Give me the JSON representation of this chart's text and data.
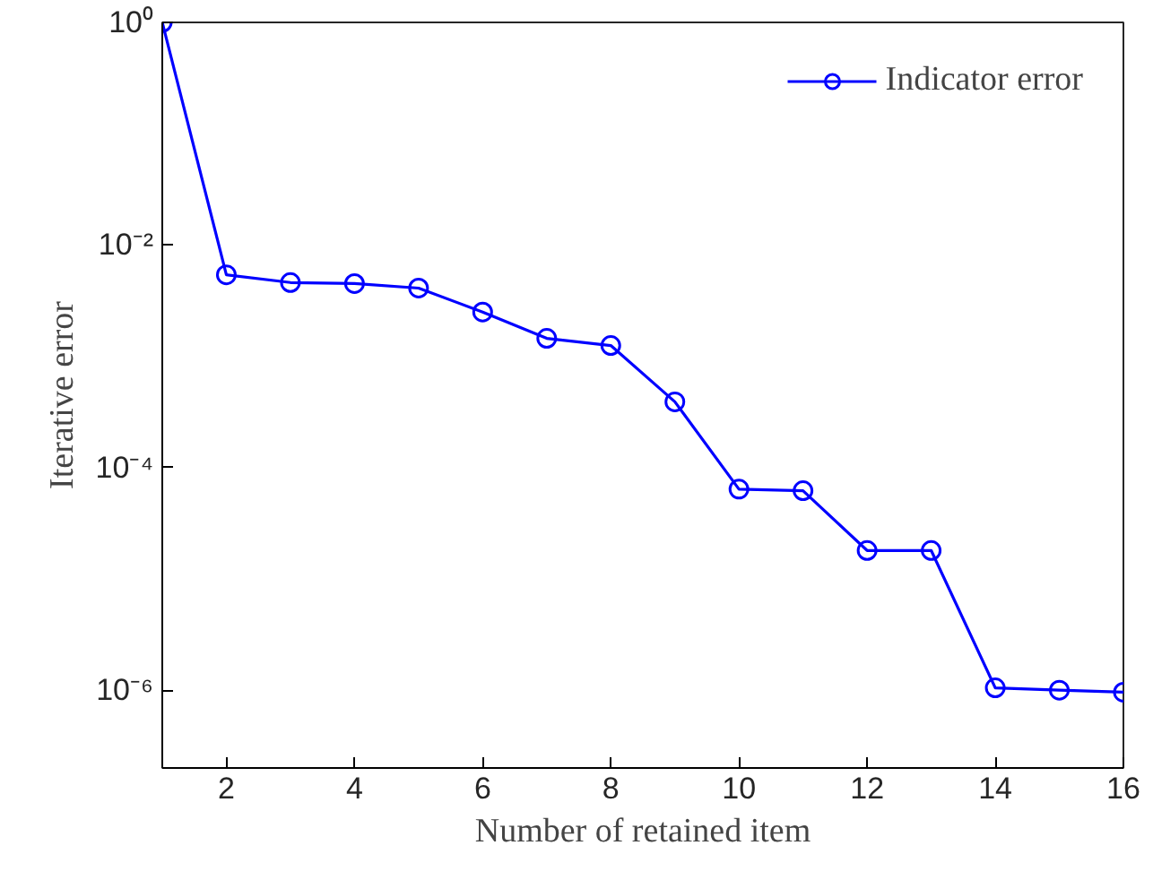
{
  "chart_data": {
    "type": "line",
    "xlabel": "Number of retained item",
    "ylabel": "Iterative error",
    "x": [
      1,
      2,
      3,
      4,
      5,
      6,
      7,
      8,
      9,
      10,
      11,
      12,
      13,
      14,
      15,
      16
    ],
    "series": [
      {
        "name": "Indicator error",
        "color": "#0000ff",
        "values": [
          1,
          0.0054,
          0.0046,
          0.0045,
          0.0041,
          0.0025,
          0.00145,
          0.00125,
          0.00039,
          6.4e-05,
          6.2e-05,
          1.8e-05,
          1.8e-05,
          1.05e-06,
          1e-06,
          9.6e-07
        ]
      }
    ],
    "log": "y",
    "xlim": [
      1,
      16
    ],
    "ylim": [
      2e-07,
      1
    ],
    "xticks": [
      2,
      4,
      6,
      8,
      10,
      12,
      14,
      16
    ],
    "yticks": [
      {
        "value": 1,
        "label": "10⁰"
      },
      {
        "value": 0.01,
        "label": "10⁻²"
      },
      {
        "value": 0.0001,
        "label": "10⁻⁴"
      },
      {
        "value": 1e-06,
        "label": "10⁻⁶"
      }
    ],
    "grid": false,
    "legend": "top right",
    "marker": "circle",
    "line_style": "solid"
  }
}
